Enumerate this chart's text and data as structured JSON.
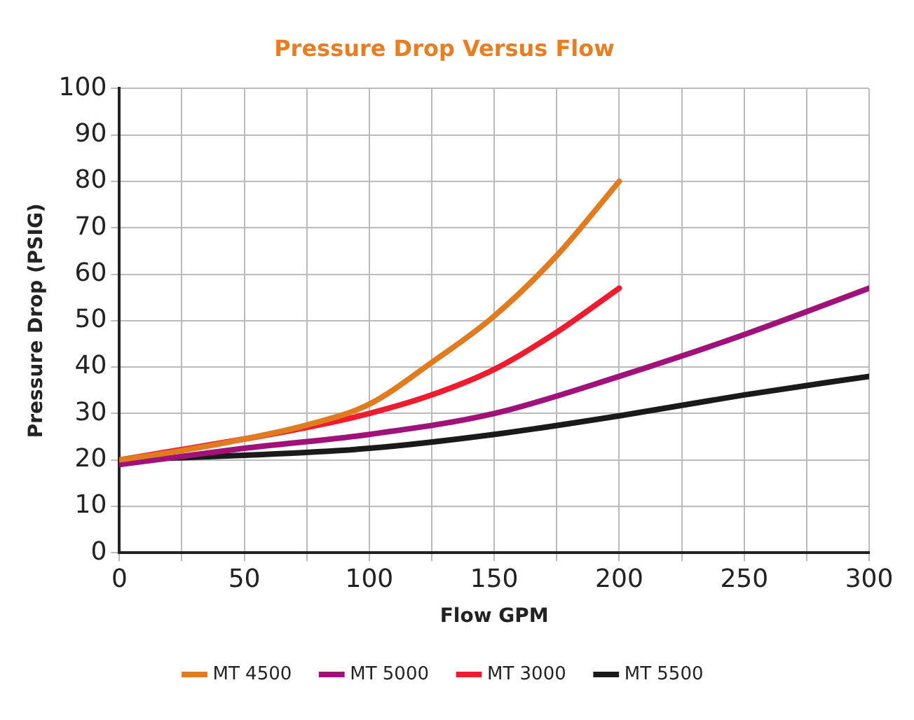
{
  "chart_data": {
    "type": "line",
    "title": "Pressure Drop Versus Flow",
    "xlabel": "Flow GPM",
    "ylabel": "Pressure Drop (PSIG)",
    "xlim": [
      0,
      300
    ],
    "xticks": [
      0,
      {
        "value": 25,
        "label": null
      },
      50,
      {
        "value": 75,
        "label": null
      },
      100,
      {
        "value": 125,
        "label": null
      },
      150,
      {
        "value": 175,
        "label": null
      },
      200,
      {
        "value": 225,
        "label": null
      },
      250,
      {
        "value": 275,
        "label": null
      },
      300
    ],
    "ylim": [
      0,
      100
    ],
    "yticks": [
      0,
      10,
      20,
      30,
      40,
      50,
      60,
      70,
      80,
      90,
      100
    ],
    "grid": true,
    "legend": "bottom",
    "marker": "none",
    "line_style": "solid",
    "series": [
      {
        "name": "MT 4500",
        "color": "#e07b1f",
        "x": [
          0,
          25,
          50,
          75,
          100,
          125,
          150,
          175,
          200
        ],
        "values": [
          20,
          22,
          24.5,
          27.5,
          32,
          41,
          51,
          64,
          80
        ]
      },
      {
        "name": "MT 5000",
        "color": "#a0117a",
        "x": [
          0,
          50,
          100,
          150,
          200,
          250,
          300
        ],
        "values": [
          19,
          22.5,
          25.5,
          30,
          38,
          47,
          57
        ]
      },
      {
        "name": "MT 3000",
        "color": "#ee1c2e",
        "x": [
          0,
          50,
          75,
          100,
          125,
          150,
          175,
          200
        ],
        "values": [
          20,
          24.5,
          27,
          30,
          34,
          39.5,
          47.5,
          57
        ]
      },
      {
        "name": "MT 5500",
        "color": "#1a1a1a",
        "x": [
          0,
          50,
          100,
          150,
          200,
          250,
          300
        ],
        "values": [
          20,
          21,
          22.5,
          25.5,
          29.5,
          34,
          38
        ]
      }
    ]
  }
}
